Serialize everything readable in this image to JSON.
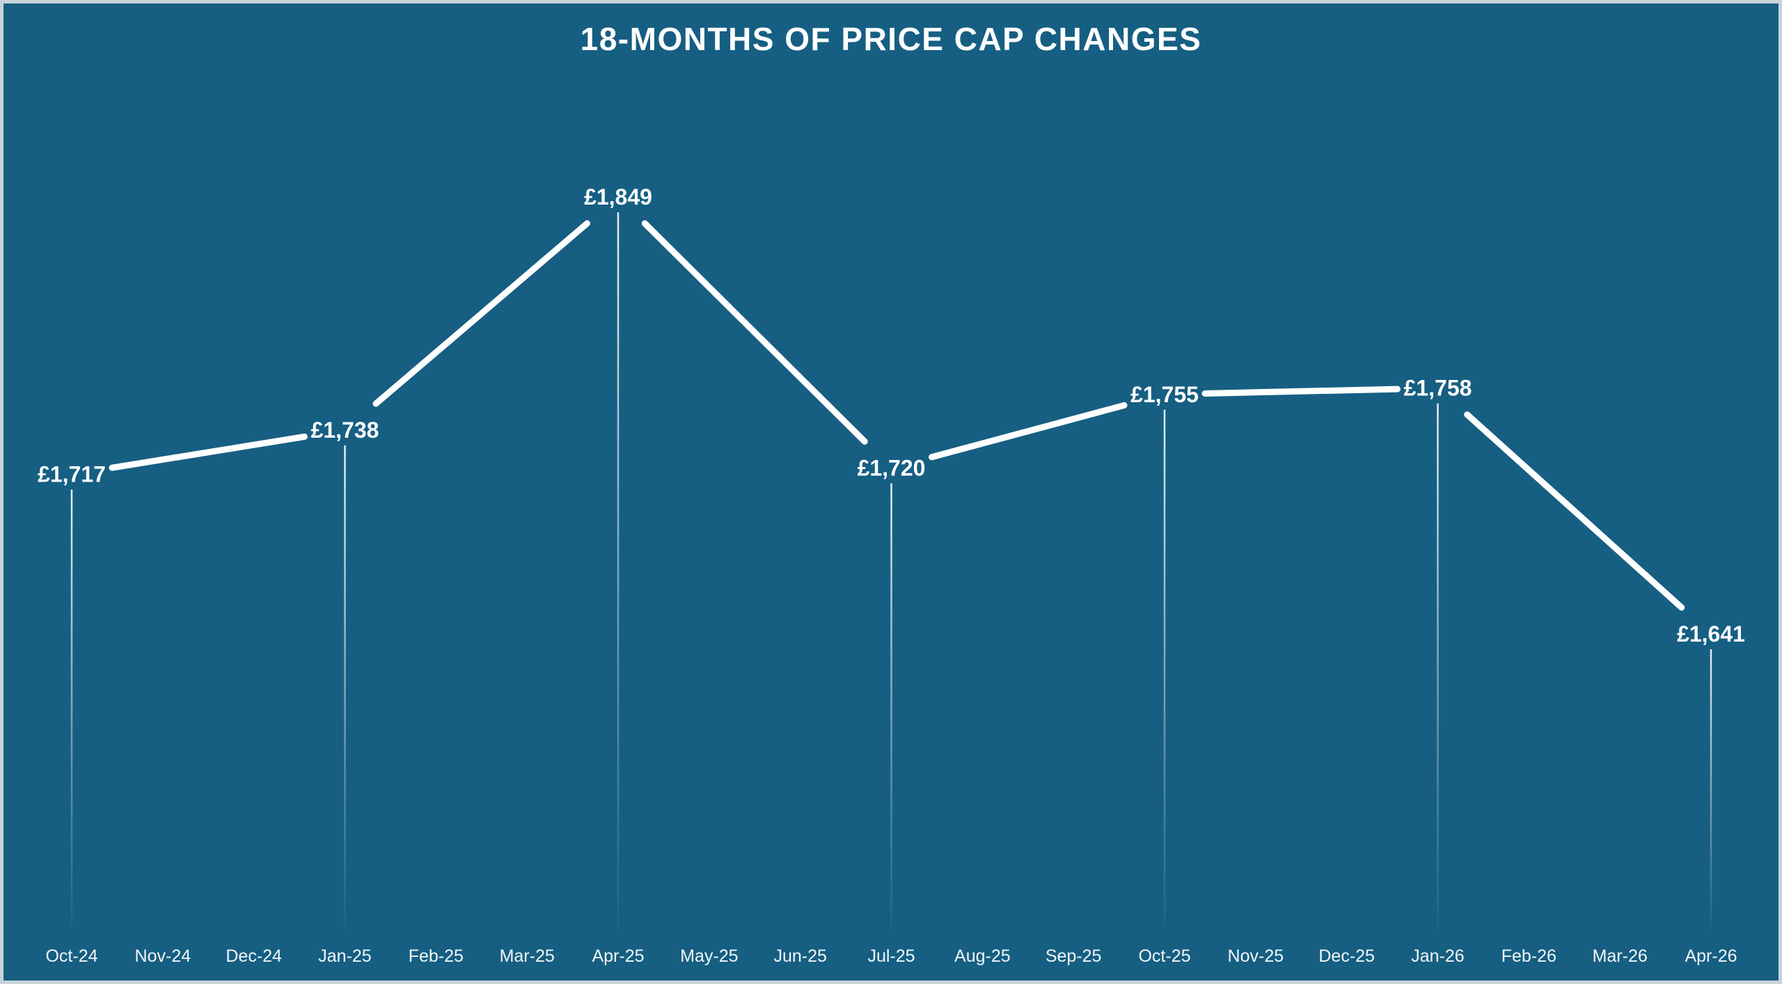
{
  "page": {
    "background_color": "#165f82",
    "frame_color": "#c9d3da",
    "text_color": "#ffffff"
  },
  "chart_data": {
    "type": "line",
    "title": "18-MONTHS OF PRICE CAP CHANGES",
    "x_categories": [
      "Oct-24",
      "Nov-24",
      "Dec-24",
      "Jan-25",
      "Feb-25",
      "Mar-25",
      "Apr-25",
      "May-25",
      "Jun-25",
      "Jul-25",
      "Aug-25",
      "Sep-25",
      "Oct-25",
      "Nov-25",
      "Dec-25",
      "Jan-26",
      "Feb-26",
      "Mar-26",
      "Apr-26"
    ],
    "points": [
      {
        "x": "Oct-24",
        "y": 1717,
        "label": "£1,717"
      },
      {
        "x": "Jan-25",
        "y": 1738,
        "label": "£1,738"
      },
      {
        "x": "Apr-25",
        "y": 1849,
        "label": "£1,849"
      },
      {
        "x": "Jul-25",
        "y": 1720,
        "label": "£1,720"
      },
      {
        "x": "Oct-25",
        "y": 1755,
        "label": "£1,755"
      },
      {
        "x": "Jan-26",
        "y": 1758,
        "label": "£1,758"
      },
      {
        "x": "Apr-26",
        "y": 1641,
        "label": "£1,641"
      }
    ],
    "ylim": [
      1641,
      1849
    ],
    "xlabel": "",
    "ylabel": "",
    "grid": false,
    "legend": false,
    "line_color": "#ffffff",
    "label_color": "#ffffff",
    "drop_line_color": "#ffffff"
  }
}
